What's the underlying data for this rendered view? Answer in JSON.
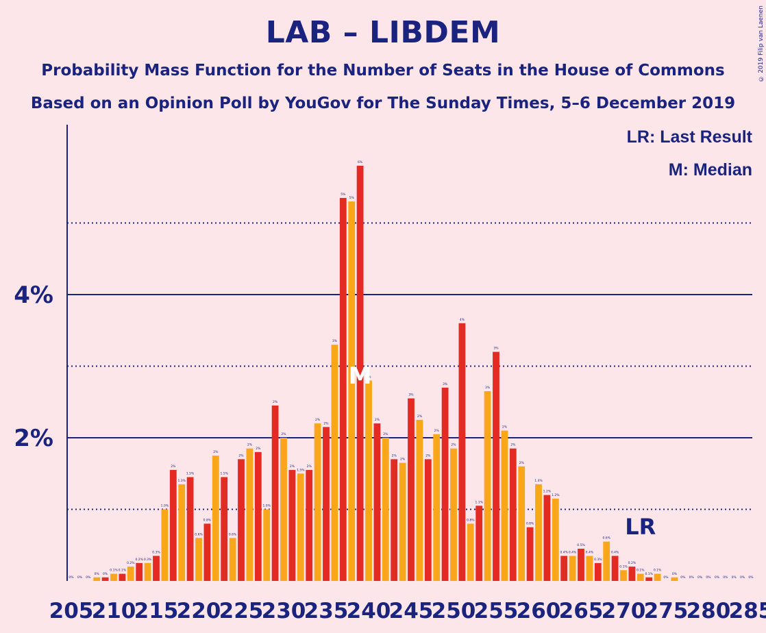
{
  "title": "LAB – LIBDEM",
  "subtitle_1": "Probability Mass Function for the Number of Seats in the House of Commons",
  "subtitle_2": "Based on an Opinion Poll by YouGov for The Sunday Times, 5–6 December 2019",
  "copyright": "© 2019 Filip van Laenen",
  "legend": {
    "last_result": "LR: Last Result",
    "median": "M: Median"
  },
  "markers": {
    "last_result_label": "LR",
    "median_label": "M"
  },
  "colors": {
    "bar_a": "#e32a23",
    "bar_b": "#faa61a",
    "axis": "#1a237e",
    "background": "#fde6ea"
  },
  "chart_data": {
    "type": "bar",
    "x_start": 205,
    "x_end": 285,
    "x_tick_labels": [
      "205",
      "210",
      "215",
      "220",
      "225",
      "230",
      "235",
      "240",
      "245",
      "250",
      "255",
      "260",
      "265",
      "270",
      "275",
      "280",
      "285"
    ],
    "y_tick_labels": [
      "2%",
      "4%"
    ],
    "y_gridlines_percent": [
      1,
      2,
      3,
      4,
      5
    ],
    "ylim": [
      0,
      6.3
    ],
    "median_seat": 239,
    "last_result_seat": 272,
    "values": [
      0.0,
      0.0,
      0.0,
      0.05,
      0.05,
      0.1,
      0.1,
      0.2,
      0.25,
      0.25,
      0.35,
      1.0,
      1.55,
      1.35,
      1.45,
      0.6,
      0.8,
      1.75,
      1.45,
      0.6,
      1.7,
      1.85,
      1.8,
      1.0,
      2.45,
      2.0,
      1.55,
      1.5,
      1.55,
      2.2,
      2.15,
      3.3,
      5.35,
      5.3,
      5.8,
      2.8,
      2.2,
      2.0,
      1.7,
      1.65,
      2.55,
      2.25,
      1.7,
      2.05,
      2.7,
      1.85,
      3.6,
      0.8,
      1.05,
      2.65,
      3.2,
      2.1,
      1.85,
      1.6,
      0.75,
      1.35,
      1.2,
      1.15,
      0.35,
      0.35,
      0.45,
      0.35,
      0.25,
      0.55,
      0.35,
      0.15,
      0.2,
      0.1,
      0.05,
      0.1,
      0.0,
      0.05,
      0.0,
      0.0,
      0.0,
      0.0,
      0.0,
      0.0,
      0.0,
      0.0,
      0.0
    ],
    "data_labels": [
      "0%",
      "0%",
      "0%",
      "0%",
      "0%",
      "0.1%",
      "0.1%",
      "0.2%",
      "0.2%",
      "0.3%",
      "0.3%",
      "1.0%",
      "2%",
      "1.3%",
      "1.5%",
      "0.6%",
      "0.8%",
      "2%",
      "1.5%",
      "0.6%",
      "2%",
      "2%",
      "2%",
      "1.0%",
      "2%",
      "2%",
      "2%",
      "1.5%",
      "2%",
      "2%",
      "2%",
      "3%",
      "5%",
      "5%",
      "6%",
      "3%",
      "2%",
      "2%",
      "2%",
      "2%",
      "3%",
      "2%",
      "2%",
      "2%",
      "3%",
      "2%",
      "4%",
      "0.8%",
      "1.1%",
      "3%",
      "3%",
      "2%",
      "2%",
      "2%",
      "0.8%",
      "1.4%",
      "1.2%",
      "1.2%",
      "0.4%",
      "0.4%",
      "0.5%",
      "0.4%",
      "0.3%",
      "0.6%",
      "0.4%",
      "0.1%",
      "0.2%",
      "0.1%",
      "0.1%",
      "0.1%",
      "0%",
      "0%",
      "0%",
      "0%",
      "0%",
      "0%",
      "0%",
      "0%",
      "0%",
      "0%",
      "0%"
    ]
  }
}
